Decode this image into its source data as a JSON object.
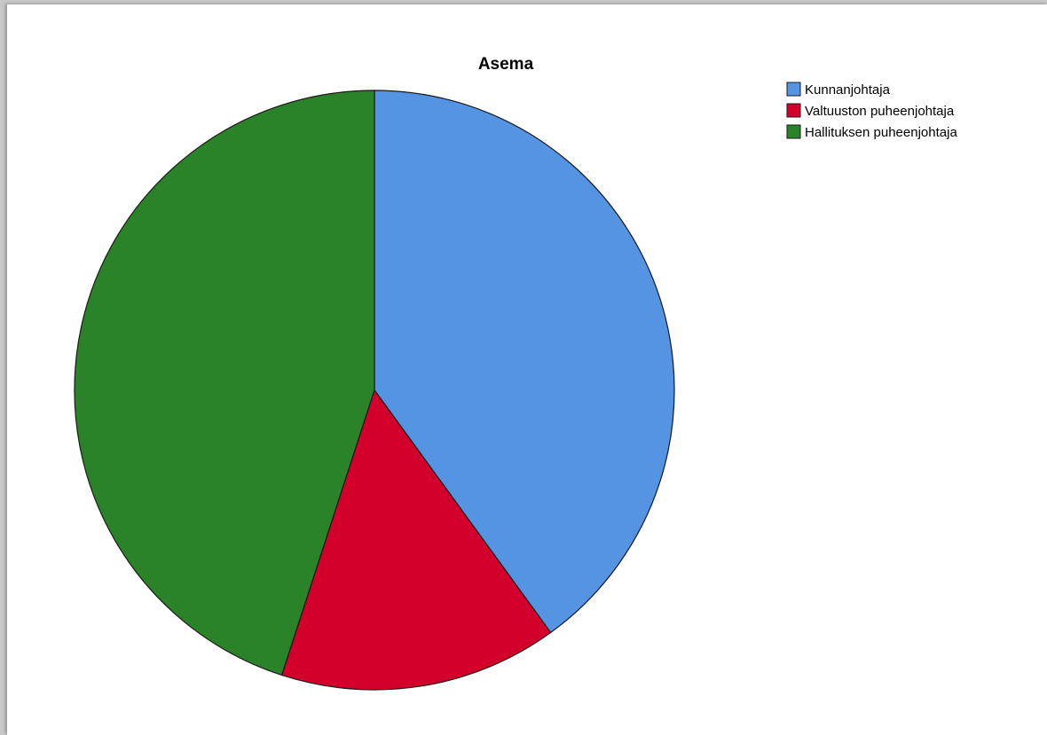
{
  "chart_data": {
    "type": "pie",
    "title": "Asema",
    "categories": [
      "Kunnanjohtaja",
      "Valtuuston puheenjohtaja",
      "Hallituksen puheenjohtaja"
    ],
    "values": [
      40,
      15,
      45
    ],
    "colors": [
      "#5494e3",
      "#d3002c",
      "#2a8329"
    ],
    "legend": "top-right",
    "start_angle_deg": 0,
    "direction": "clockwise"
  }
}
